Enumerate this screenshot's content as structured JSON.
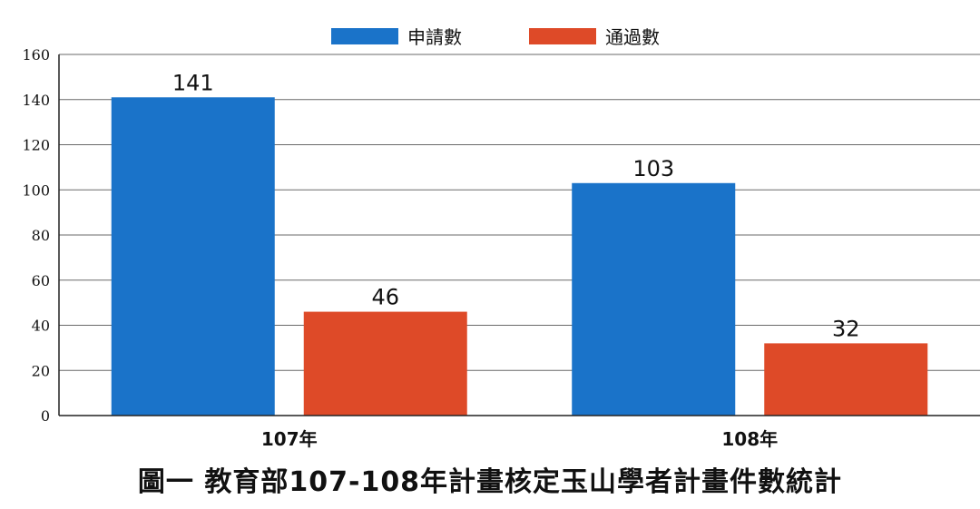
{
  "chart_data": {
    "type": "bar",
    "categories": [
      "107年",
      "108年"
    ],
    "series": [
      {
        "name": "申請數",
        "values": [
          141,
          103
        ],
        "color": "#1a73c9"
      },
      {
        "name": "通過數",
        "values": [
          46,
          32
        ],
        "color": "#de4a28"
      }
    ],
    "ylim": [
      0,
      160
    ],
    "yticks": [
      "0",
      "20",
      "40",
      "60",
      "80",
      "100",
      "120",
      "140",
      "160"
    ],
    "grid": true,
    "legend": "top-center",
    "caption": "圖一  教育部107-108年計畫核定玉山學者計畫件數統計"
  }
}
